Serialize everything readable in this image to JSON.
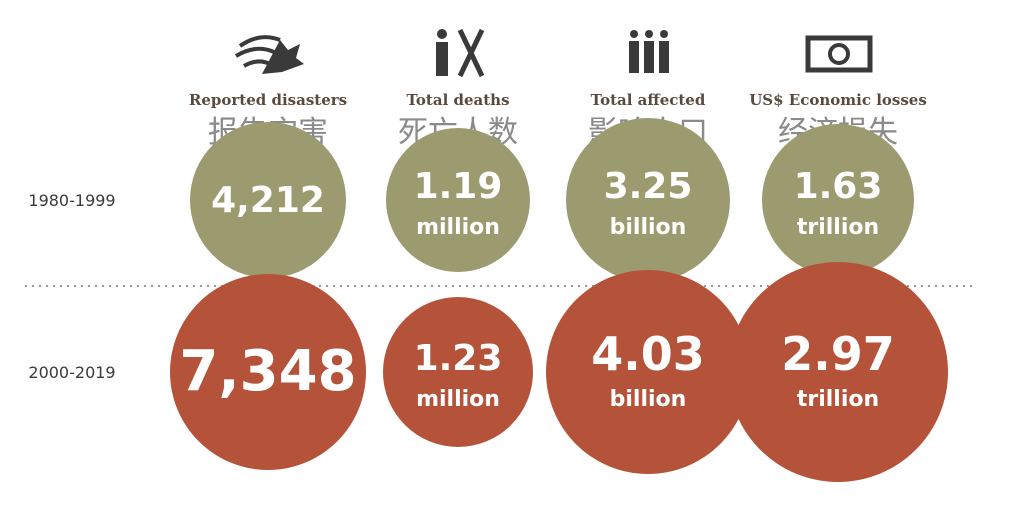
{
  "columns": [
    {
      "title_en": "Reported disasters",
      "title_zh": "报告灾害"
    },
    {
      "title_en": "Total deaths",
      "title_zh": "死亡人数"
    },
    {
      "title_en": "Total affected",
      "title_zh": "影响人口"
    },
    {
      "title_en": "US$ Economic losses",
      "title_zh": "经济损失"
    }
  ],
  "rows": [
    {
      "period": "1980-1999",
      "cells": [
        {
          "value": "4,212"
        },
        {
          "value": "1.19",
          "unit": "million"
        },
        {
          "value": "3.25",
          "unit": "billion"
        },
        {
          "value": "1.63",
          "unit": "trillion"
        }
      ]
    },
    {
      "period": "2000-2019",
      "cells": [
        {
          "value": "7,348"
        },
        {
          "value": "1.23",
          "unit": "million"
        },
        {
          "value": "4.03",
          "unit": "billion"
        },
        {
          "value": "2.97",
          "unit": "trillion"
        }
      ]
    }
  ]
}
